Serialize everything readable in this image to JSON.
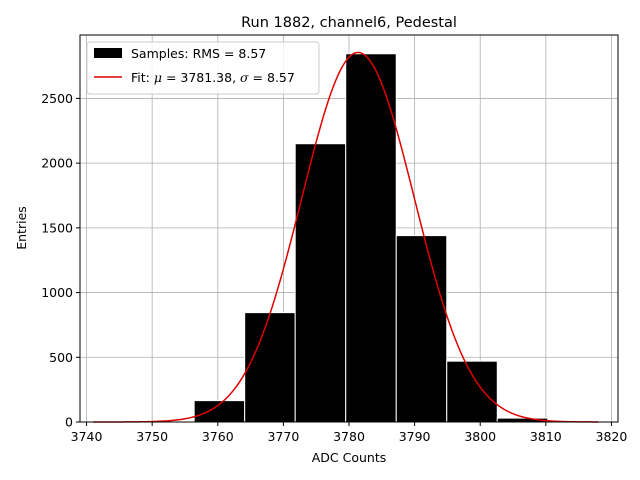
{
  "chart_data": {
    "type": "bar",
    "title": "Run 1882, channel6, Pedestal",
    "xlabel": "ADC Counts",
    "ylabel": "Entries",
    "xlim": [
      3739,
      3821
    ],
    "ylim": [
      0,
      2990
    ],
    "x_ticks": [
      3740,
      3750,
      3760,
      3770,
      3780,
      3790,
      3800,
      3810,
      3820
    ],
    "y_ticks": [
      0,
      500,
      1000,
      1500,
      2000,
      2500
    ],
    "grid": true,
    "legend_position": "top-left",
    "histogram": {
      "name": "Samples: RMS = 8.57",
      "bin_edges": [
        3741,
        3748.7,
        3756.4,
        3764.1,
        3771.8,
        3779.5,
        3787.2,
        3794.9,
        3802.6,
        3810.3,
        3818
      ],
      "counts": [
        0,
        2,
        165,
        845,
        2150,
        2845,
        1440,
        470,
        30,
        2
      ],
      "color": "#000000"
    },
    "fit": {
      "name_prefix": "Fit: ",
      "name_mu": "μ",
      "name_mid": " = 3781.38, ",
      "name_sigma": "σ",
      "name_suffix": " = 8.57",
      "mu": 3781.38,
      "sigma": 8.57,
      "amplitude": 2855,
      "x_range": [
        3741,
        3818
      ],
      "color": "#e00000"
    }
  }
}
